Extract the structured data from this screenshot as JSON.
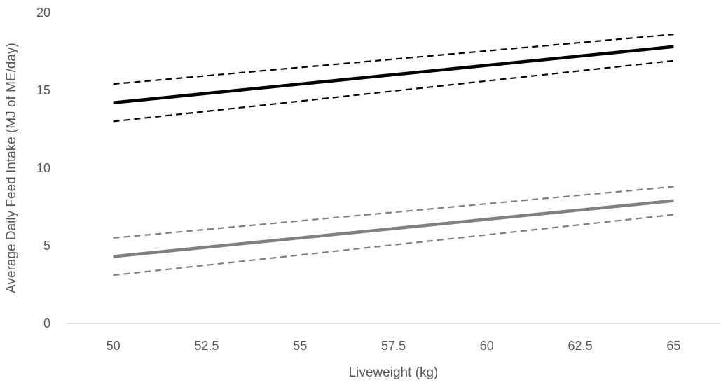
{
  "chart_data": {
    "type": "line",
    "title": "",
    "xlabel": "Liveweight (kg)",
    "ylabel": "Average Daily Feed Intake (MJ of ME/day)",
    "x": [
      50,
      65
    ],
    "x_ticks": [
      "50",
      "52.5",
      "55",
      "57.5",
      "60",
      "62.5",
      "65"
    ],
    "x_tick_values": [
      50,
      52.5,
      55,
      57.5,
      60,
      62.5,
      65
    ],
    "xlim": [
      48.75,
      66.25
    ],
    "y_ticks": [
      "0",
      "5",
      "10",
      "15",
      "20"
    ],
    "y_tick_values": [
      0,
      5,
      10,
      15,
      20
    ],
    "ylim": [
      0,
      20
    ],
    "grid": false,
    "legend": "none",
    "series": [
      {
        "values": [
          14.2,
          17.8
        ],
        "color": "#000000",
        "style": "solid"
      },
      {
        "values": [
          15.4,
          18.6
        ],
        "color": "#000000",
        "style": "dashed"
      },
      {
        "values": [
          13.0,
          16.9
        ],
        "color": "#000000",
        "style": "dashed"
      },
      {
        "values": [
          4.3,
          7.9
        ],
        "color": "#808080",
        "style": "solid"
      },
      {
        "values": [
          5.5,
          8.8
        ],
        "color": "#808080",
        "style": "dashed"
      },
      {
        "values": [
          3.1,
          7.0
        ],
        "color": "#808080",
        "style": "dashed"
      }
    ]
  }
}
